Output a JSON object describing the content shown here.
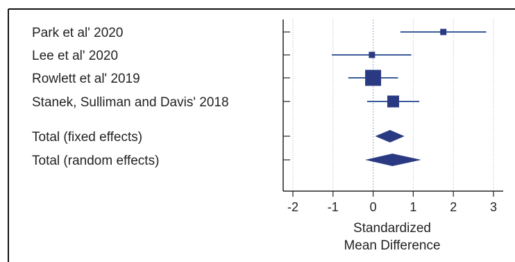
{
  "chart_data": {
    "type": "forest",
    "xlabel_lines": [
      "Standardized",
      "Mean Difference"
    ],
    "xlim": [
      -2.2,
      3.2
    ],
    "xticks": [
      -2,
      -1,
      0,
      1,
      2,
      3
    ],
    "xtick_labels": [
      "-2",
      "-1",
      "0",
      "1",
      "2",
      "3"
    ],
    "reference_line": 0,
    "grid": "vertical dotted at major ticks",
    "colors": {
      "marker": "#2a3a82",
      "line": "#3b5a9a",
      "grid": "#9fb4d6",
      "axis": "#222222"
    },
    "studies": [
      {
        "label": "Park et al' 2020",
        "estimate": 1.75,
        "ci_low": 0.68,
        "ci_high": 2.82,
        "weight": "small"
      },
      {
        "label": "Lee et al' 2020",
        "estimate": -0.03,
        "ci_low": -1.03,
        "ci_high": 0.95,
        "weight": "small"
      },
      {
        "label": "Rowlett et al' 2019",
        "estimate": 0.0,
        "ci_low": -0.62,
        "ci_high": 0.62,
        "weight": "large"
      },
      {
        "label": "Stanek, Sulliman and Davis' 2018",
        "estimate": 0.5,
        "ci_low": -0.15,
        "ci_high": 1.15,
        "weight": "medium"
      }
    ],
    "totals": [
      {
        "label": "Total (fixed effects)",
        "estimate": 0.42,
        "ci_low": 0.05,
        "ci_high": 0.78
      },
      {
        "label": "Total (random effects)",
        "estimate": 0.48,
        "ci_low": -0.2,
        "ci_high": 1.2
      }
    ]
  }
}
